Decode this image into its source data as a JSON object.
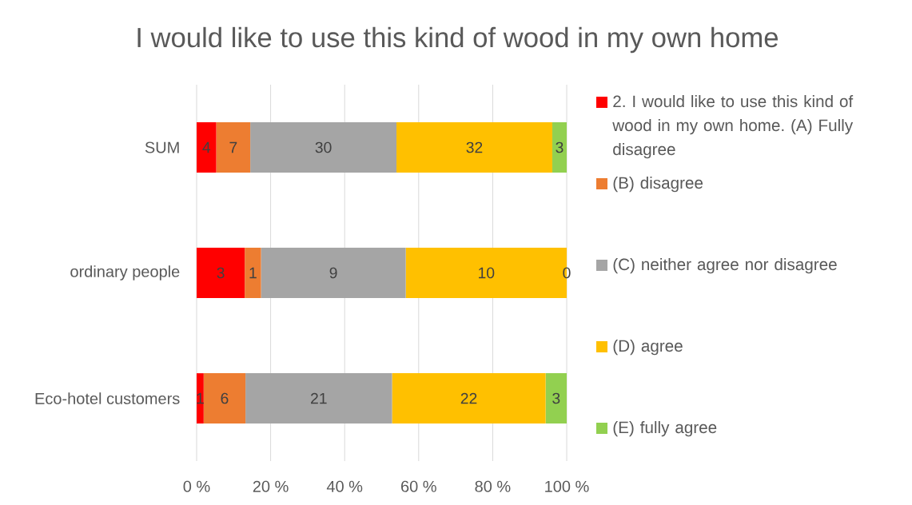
{
  "chart_data": {
    "type": "bar",
    "orientation": "horizontal",
    "stacked": true,
    "title": "I would like to use this kind of wood in my own home",
    "categories": [
      "SUM",
      "ordinary people",
      "Eco-hotel customers"
    ],
    "series": [
      {
        "name": "2. I would like to use this kind of wood in my own home. (A) Fully disagree",
        "color": "#ff0000",
        "values": [
          5.3,
          13.0,
          1.9
        ]
      },
      {
        "name": "(B) disagree",
        "color": "#ed7d31",
        "values": [
          9.2,
          4.4,
          11.3
        ]
      },
      {
        "name": "(C) neither agree nor disagree",
        "color": "#a5a5a5",
        "values": [
          39.5,
          39.1,
          39.6
        ]
      },
      {
        "name": "(D) agree",
        "color": "#ffc000",
        "values": [
          42.1,
          43.5,
          41.5
        ]
      },
      {
        "name": "(E) fully agree",
        "color": "#92d050",
        "values": [
          3.9,
          0,
          5.7
        ]
      }
    ],
    "xlim": [
      0,
      100
    ],
    "xticks": [
      {
        "value": 0,
        "label": "0 %"
      },
      {
        "value": 20,
        "label": "20 %"
      },
      {
        "value": 40,
        "label": "40 %"
      },
      {
        "value": 60,
        "label": "60 %"
      },
      {
        "value": 80,
        "label": "80 %"
      },
      {
        "value": 100,
        "label": "100 %"
      }
    ],
    "grid": "x",
    "legend": "right",
    "annotations": [
      "4",
      "7",
      "30",
      "32",
      "3",
      "3",
      "1",
      "9",
      "10",
      "0",
      "1",
      "6",
      "21",
      "22",
      "3"
    ]
  }
}
